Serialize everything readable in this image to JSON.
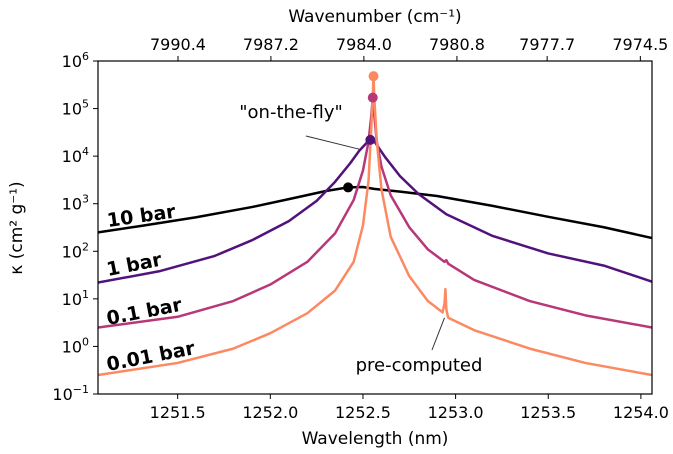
{
  "chart_data": {
    "type": "line",
    "xlabel": "Wavelength (nm)",
    "xlabel_top": "Wavenumber (cm⁻¹)",
    "ylabel": "κ (cm² g⁻¹)",
    "xlim": [
      1251.07,
      1254.06
    ],
    "ylim": [
      0.1,
      1000000
    ],
    "y_scale": "log",
    "grid": false,
    "x_ticks": [
      1251.5,
      1252.0,
      1252.5,
      1253.0,
      1253.5,
      1254.0
    ],
    "x_tick_labels": [
      "1251.5",
      "1252.0",
      "1252.5",
      "1253.0",
      "1253.5",
      "1254.0"
    ],
    "top_ticks": [
      {
        "value": 7990.4,
        "label": "7990.4"
      },
      {
        "value": 7987.2,
        "label": "7987.2"
      },
      {
        "value": 7984.0,
        "label": "7984.0"
      },
      {
        "value": 7980.8,
        "label": "7980.8"
      },
      {
        "value": 7977.7,
        "label": "7977.7"
      },
      {
        "value": 7974.5,
        "label": "7974.5"
      }
    ],
    "y_ticks": [
      {
        "value": 0.1,
        "label": "10",
        "exp": "−1"
      },
      {
        "value": 1,
        "label": "10",
        "exp": "0"
      },
      {
        "value": 10,
        "label": "10",
        "exp": "1"
      },
      {
        "value": 100,
        "label": "10",
        "exp": "2"
      },
      {
        "value": 1000,
        "label": "10",
        "exp": "3"
      },
      {
        "value": 10000,
        "label": "10",
        "exp": "4"
      },
      {
        "value": 100000,
        "label": "10",
        "exp": "5"
      },
      {
        "value": 1000000,
        "label": "10",
        "exp": "6"
      }
    ],
    "series": [
      {
        "name": "10 bar",
        "color": "#000004",
        "marker": {
          "x": 1252.42,
          "y": 2200
        },
        "points": [
          [
            1251.07,
            250
          ],
          [
            1251.3,
            340
          ],
          [
            1251.6,
            520
          ],
          [
            1251.9,
            850
          ],
          [
            1252.1,
            1250
          ],
          [
            1252.3,
            1850
          ],
          [
            1252.42,
            2200
          ],
          [
            1252.5,
            2250
          ],
          [
            1252.56,
            2050
          ],
          [
            1252.7,
            1800
          ],
          [
            1252.9,
            1450
          ],
          [
            1253.2,
            900
          ],
          [
            1253.5,
            530
          ],
          [
            1253.8,
            320
          ],
          [
            1254.06,
            190
          ]
        ]
      },
      {
        "name": "1 bar",
        "color": "#51127c",
        "marker": {
          "x": 1252.54,
          "y": 22000
        },
        "points": [
          [
            1251.07,
            22
          ],
          [
            1251.4,
            38
          ],
          [
            1251.7,
            80
          ],
          [
            1251.9,
            170
          ],
          [
            1252.1,
            430
          ],
          [
            1252.25,
            1150
          ],
          [
            1252.35,
            2900
          ],
          [
            1252.43,
            7000
          ],
          [
            1252.48,
            13000
          ],
          [
            1252.52,
            19000
          ],
          [
            1252.54,
            22000
          ],
          [
            1252.56,
            21000
          ],
          [
            1252.58,
            16000
          ],
          [
            1252.62,
            9500
          ],
          [
            1252.7,
            3800
          ],
          [
            1252.8,
            1600
          ],
          [
            1252.95,
            600
          ],
          [
            1253.2,
            210
          ],
          [
            1253.5,
            90
          ],
          [
            1253.8,
            50
          ],
          [
            1254.06,
            23
          ]
        ]
      },
      {
        "name": "0.1 bar",
        "color": "#b73779",
        "marker": {
          "x": 1252.553,
          "y": 170000
        },
        "points": [
          [
            1251.07,
            2.5
          ],
          [
            1251.5,
            4.2
          ],
          [
            1251.8,
            9
          ],
          [
            1252.0,
            20
          ],
          [
            1252.2,
            60
          ],
          [
            1252.35,
            240
          ],
          [
            1252.45,
            1200
          ],
          [
            1252.5,
            5000
          ],
          [
            1252.53,
            20000
          ],
          [
            1252.545,
            70000
          ],
          [
            1252.553,
            170000
          ],
          [
            1252.56,
            80000
          ],
          [
            1252.575,
            20000
          ],
          [
            1252.6,
            6000
          ],
          [
            1252.65,
            1500
          ],
          [
            1252.75,
            320
          ],
          [
            1252.85,
            110
          ],
          [
            1252.94,
            60
          ],
          [
            1252.95,
            65
          ],
          [
            1252.96,
            55
          ],
          [
            1253.1,
            25
          ],
          [
            1253.4,
            9
          ],
          [
            1253.7,
            4.5
          ],
          [
            1254.06,
            2.5
          ]
        ]
      },
      {
        "name": "0.01 bar",
        "color": "#fc8961",
        "marker": {
          "x": 1252.557,
          "y": 480000
        },
        "points": [
          [
            1251.07,
            0.25
          ],
          [
            1251.5,
            0.45
          ],
          [
            1251.8,
            0.9
          ],
          [
            1252.0,
            1.9
          ],
          [
            1252.2,
            5
          ],
          [
            1252.35,
            15
          ],
          [
            1252.45,
            60
          ],
          [
            1252.5,
            350
          ],
          [
            1252.53,
            3000
          ],
          [
            1252.545,
            40000
          ],
          [
            1252.553,
            200000
          ],
          [
            1252.557,
            480000
          ],
          [
            1252.562,
            150000
          ],
          [
            1252.575,
            20000
          ],
          [
            1252.6,
            2000
          ],
          [
            1252.65,
            200
          ],
          [
            1252.75,
            30
          ],
          [
            1252.85,
            9
          ],
          [
            1252.93,
            5.2
          ],
          [
            1252.94,
            8
          ],
          [
            1252.945,
            16
          ],
          [
            1252.95,
            6
          ],
          [
            1252.96,
            4
          ],
          [
            1253.1,
            2.2
          ],
          [
            1253.4,
            0.9
          ],
          [
            1253.7,
            0.45
          ],
          [
            1254.06,
            0.25
          ]
        ]
      }
    ],
    "annotations": [
      {
        "text": "\"on-the-fly\"",
        "x": 1252.48,
        "y": 14000
      },
      {
        "text": "pre-computed",
        "x": 1252.94,
        "y": 4
      }
    ]
  }
}
